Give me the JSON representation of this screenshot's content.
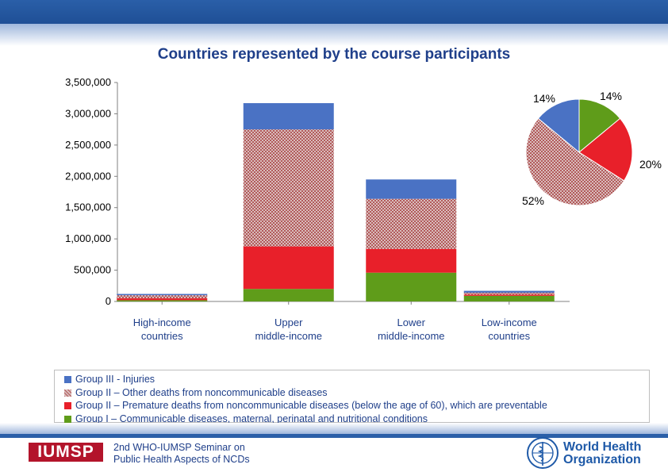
{
  "slide": {
    "title": "Countries represented by the course participants",
    "footer_line1": "2nd WHO-IUMSP Seminar on",
    "footer_line2": "Public Health Aspects of NCDs",
    "logo_left_text": "IUMSP",
    "logo_right_line1": "World Health",
    "logo_right_line2": "Organization"
  },
  "colors": {
    "group3": "#4a72c4",
    "group2_other": "#c9a5a5",
    "group2_premature": "#e8202a",
    "group1": "#5f9c1a",
    "brand_blue": "#1f3f8a",
    "iumsp_red": "#b3142b"
  },
  "chart_data": [
    {
      "type": "bar",
      "stacked": true,
      "categories": [
        "High-income countries",
        "Upper middle-income",
        "Lower middle-income",
        "Low-income countries"
      ],
      "category_lines": [
        [
          "High-income",
          "countries"
        ],
        [
          "Upper",
          "middle-income"
        ],
        [
          "Lower",
          "middle-income"
        ],
        [
          "Low-income",
          "countries"
        ]
      ],
      "series": [
        {
          "name": "Group I – Communicable diseases, maternal, perinatal and nutritional conditions",
          "values": [
            20000,
            200000,
            460000,
            90000
          ]
        },
        {
          "name": "Group II – Premature deaths from noncommunicable diseases (below the age of 60), which are preventable",
          "values": [
            30000,
            680000,
            380000,
            20000
          ]
        },
        {
          "name": "Group II – Other deaths from noncommunicable diseases",
          "values": [
            50000,
            1870000,
            800000,
            30000
          ]
        },
        {
          "name": "Group III - Injuries",
          "values": [
            20000,
            420000,
            310000,
            30000
          ]
        }
      ],
      "yticks": [
        "0",
        "500,000",
        "1,000,000",
        "1,500,000",
        "2,000,000",
        "2,500,000",
        "3,000,000",
        "3,500,000"
      ],
      "ylim": [
        0,
        3500000
      ],
      "legend": "bottom"
    },
    {
      "type": "pie",
      "slices": [
        {
          "label": "14%",
          "value": 14,
          "series": "Group I"
        },
        {
          "label": "20%",
          "value": 20,
          "series": "Group II premature"
        },
        {
          "label": "52%",
          "value": 52,
          "series": "Group II other"
        },
        {
          "label": "14%",
          "value": 14,
          "series": "Group III"
        }
      ]
    }
  ],
  "legend_order": [
    {
      "key": "group3",
      "label": "Group III - Injuries"
    },
    {
      "key": "group2_other",
      "label": "Group II – Other deaths from noncommunicable diseases"
    },
    {
      "key": "group2_premature",
      "label": "Group II – Premature deaths from noncommunicable diseases (below the age of 60), which are preventable"
    },
    {
      "key": "group1",
      "label": "Group I – Communicable diseases, maternal, perinatal and nutritional conditions"
    }
  ]
}
